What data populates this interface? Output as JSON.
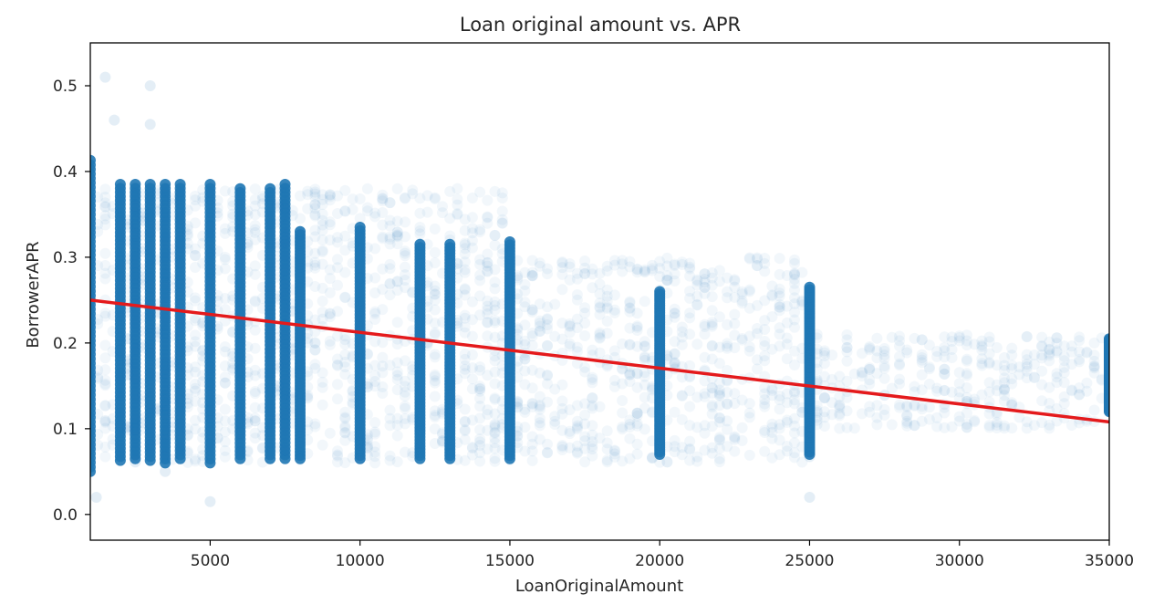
{
  "chart_data": {
    "type": "scatter",
    "title": "Loan original amount vs. APR",
    "xlabel": "LoanOriginalAmount",
    "ylabel": "BorrowerAPR",
    "xlim": [
      1000,
      35000
    ],
    "ylim": [
      -0.03,
      0.55
    ],
    "xticks": [
      5000,
      10000,
      15000,
      20000,
      25000,
      30000,
      35000
    ],
    "xtick_labels": [
      "5000",
      "10000",
      "15000",
      "20000",
      "25000",
      "30000",
      "35000"
    ],
    "yticks": [
      0.0,
      0.1,
      0.2,
      0.3,
      0.4,
      0.5
    ],
    "ytick_labels": [
      "0.0",
      "0.1",
      "0.2",
      "0.3",
      "0.4",
      "0.5"
    ],
    "grid": false,
    "colors": {
      "points": "#1f77b4",
      "regression": "#e41a1c"
    },
    "point_alpha": 0.06,
    "regression_line": {
      "x": [
        1000,
        35000
      ],
      "y": [
        0.25,
        0.108
      ]
    },
    "dense_columns": [
      {
        "x": 1000,
        "min": 0.05,
        "max": 0.413
      },
      {
        "x": 2000,
        "min": 0.063,
        "max": 0.385
      },
      {
        "x": 2500,
        "min": 0.065,
        "max": 0.385
      },
      {
        "x": 3000,
        "min": 0.063,
        "max": 0.385
      },
      {
        "x": 3500,
        "min": 0.06,
        "max": 0.385
      },
      {
        "x": 4000,
        "min": 0.065,
        "max": 0.385
      },
      {
        "x": 5000,
        "min": 0.06,
        "max": 0.385
      },
      {
        "x": 6000,
        "min": 0.065,
        "max": 0.38
      },
      {
        "x": 7000,
        "min": 0.065,
        "max": 0.38
      },
      {
        "x": 7500,
        "min": 0.065,
        "max": 0.385
      },
      {
        "x": 8000,
        "min": 0.065,
        "max": 0.33
      },
      {
        "x": 10000,
        "min": 0.065,
        "max": 0.335
      },
      {
        "x": 12000,
        "min": 0.065,
        "max": 0.315
      },
      {
        "x": 13000,
        "min": 0.065,
        "max": 0.315
      },
      {
        "x": 15000,
        "min": 0.065,
        "max": 0.318
      },
      {
        "x": 20000,
        "min": 0.07,
        "max": 0.26
      },
      {
        "x": 25000,
        "min": 0.07,
        "max": 0.265
      },
      {
        "x": 35000,
        "min": 0.12,
        "max": 0.205
      }
    ]
  }
}
